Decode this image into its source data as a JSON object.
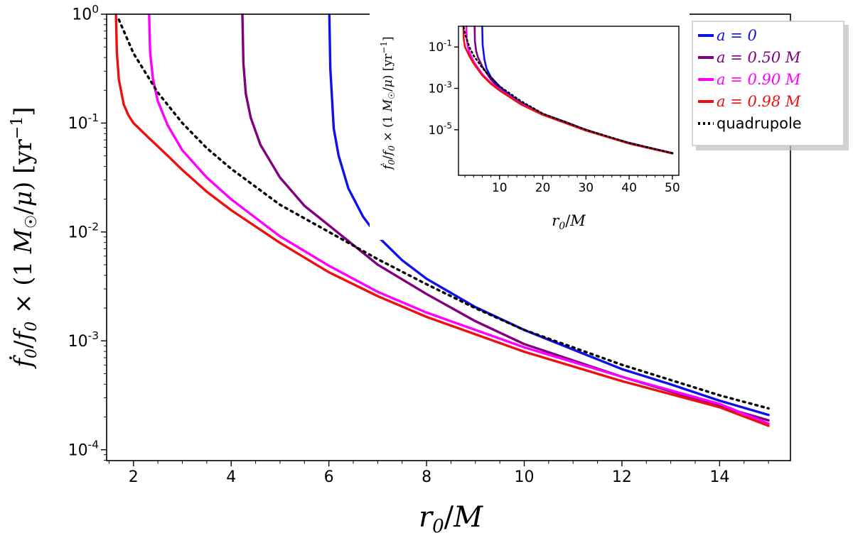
{
  "chart_data": [
    {
      "id": "main",
      "type": "line",
      "title": "",
      "xlabel": "r₀/M",
      "ylabel": "ḟ₀/f₀ × (1 M☉/μ) [yr⁻¹]",
      "xlim": [
        1.45,
        15.45
      ],
      "ylim_log10": [
        -4.1,
        0.0
      ],
      "yscale": "log",
      "x_ticks": [
        2,
        4,
        6,
        8,
        10,
        12,
        14
      ],
      "x_tick_labels": [
        "2",
        "4",
        "6",
        "8",
        "10",
        "12",
        "14"
      ],
      "y_ticks": [
        -4,
        -3,
        -2,
        -1,
        0
      ],
      "y_tick_labels": [
        {
          "base": "10",
          "exp": "-4"
        },
        {
          "base": "10",
          "exp": "-3"
        },
        {
          "base": "10",
          "exp": "-2"
        },
        {
          "base": "10",
          "exp": "-1"
        },
        {
          "base": "10",
          "exp": "0"
        }
      ],
      "series": [
        {
          "name": "a = 0",
          "color": "#1010e8",
          "style": "solid",
          "x": [
            6.01,
            6.03,
            6.1,
            6.2,
            6.4,
            6.7,
            7.0,
            7.5,
            8.0,
            9.0,
            10.0,
            11.0,
            12.0,
            13.0,
            14.0,
            15.0
          ],
          "y_log10": [
            0.0,
            -0.5,
            -1.05,
            -1.3,
            -1.6,
            -1.86,
            -2.04,
            -2.26,
            -2.43,
            -2.69,
            -2.9,
            -3.08,
            -3.26,
            -3.4,
            -3.55,
            -3.68
          ]
        },
        {
          "name": "a = 0.50 M",
          "color": "#800080",
          "style": "solid",
          "x": [
            4.23,
            4.25,
            4.3,
            4.4,
            4.6,
            5.0,
            5.5,
            6.0,
            7.0,
            8.0,
            9.0,
            10.0,
            12.0,
            14.0,
            15.0
          ],
          "y_log10": [
            0.0,
            -0.45,
            -0.73,
            -0.95,
            -1.2,
            -1.5,
            -1.76,
            -1.94,
            -2.3,
            -2.57,
            -2.82,
            -3.03,
            -3.33,
            -3.6,
            -3.73
          ]
        },
        {
          "name": "a = 0.90 M",
          "color": "#ff00ff",
          "style": "solid",
          "x": [
            2.32,
            2.34,
            2.4,
            2.5,
            2.7,
            3.0,
            3.5,
            4.0,
            5.0,
            6.0,
            7.0,
            8.0,
            10.0,
            12.0,
            14.0,
            15.0
          ],
          "y_log10": [
            0.0,
            -0.35,
            -0.6,
            -0.8,
            -1.02,
            -1.25,
            -1.5,
            -1.7,
            -2.04,
            -2.31,
            -2.55,
            -2.74,
            -3.06,
            -3.33,
            -3.58,
            -3.76
          ]
        },
        {
          "name": "a = 0.98 M",
          "color": "#ee1010",
          "style": "solid",
          "x": [
            1.64,
            1.66,
            1.7,
            1.8,
            1.9,
            2.0,
            2.3,
            2.7,
            3.0,
            3.5,
            4.0,
            5.0,
            6.0,
            7.0,
            8.0,
            10.0,
            12.0,
            14.0,
            15.0
          ],
          "y_log10": [
            0.0,
            -0.35,
            -0.6,
            -0.83,
            -0.93,
            -1.0,
            -1.13,
            -1.3,
            -1.43,
            -1.63,
            -1.8,
            -2.1,
            -2.37,
            -2.59,
            -2.78,
            -3.1,
            -3.37,
            -3.61,
            -3.78
          ]
        },
        {
          "name": "quadrupole",
          "color": "#000000",
          "style": "dotted",
          "x": [
            1.7,
            2.0,
            2.5,
            3.0,
            3.5,
            4.0,
            5.0,
            6.0,
            7.0,
            8.0,
            9.0,
            10.0,
            12.0,
            14.0,
            15.0
          ],
          "y_log10": [
            -0.05,
            -0.36,
            -0.72,
            -1.0,
            -1.23,
            -1.42,
            -1.75,
            -2.0,
            -2.25,
            -2.48,
            -2.7,
            -2.9,
            -3.22,
            -3.5,
            -3.62
          ]
        }
      ]
    },
    {
      "id": "inset",
      "type": "line",
      "title": "",
      "xlabel": "r₀/M",
      "ylabel": "ḟ₀/f₀ × (1 M☉/μ) [yr⁻¹]",
      "xlim": [
        0.5,
        51.5
      ],
      "ylim_log10": [
        -7.2,
        0.0
      ],
      "yscale": "log",
      "x_ticks": [
        10,
        20,
        30,
        40,
        50
      ],
      "x_tick_labels": [
        "10",
        "20",
        "30",
        "40",
        "50"
      ],
      "y_ticks": [
        -5,
        -3,
        -1
      ],
      "y_tick_labels": [
        {
          "base": "10",
          "exp": "-5"
        },
        {
          "base": "10",
          "exp": "-3"
        },
        {
          "base": "10",
          "exp": "-1"
        }
      ],
      "series": [
        {
          "name": "a = 0",
          "color": "#1010e8",
          "style": "solid",
          "x": [
            6.0,
            6.1,
            6.5,
            7.0,
            8.0,
            10.0,
            12.0,
            15.0,
            20.0,
            25.0,
            30.0,
            35.0,
            40.0,
            45.0,
            50.0
          ],
          "y_log10": [
            0.0,
            -0.9,
            -1.6,
            -2.05,
            -2.45,
            -2.9,
            -3.26,
            -3.68,
            -4.23,
            -4.6,
            -5.0,
            -5.33,
            -5.63,
            -5.88,
            -6.12
          ]
        },
        {
          "name": "a = 0.50 M",
          "color": "#800080",
          "style": "solid",
          "x": [
            4.23,
            4.3,
            4.6,
            5.0,
            6.0,
            8.0,
            10.0,
            15.0,
            20.0,
            30.0,
            40.0,
            50.0
          ],
          "y_log10": [
            0.0,
            -0.73,
            -1.2,
            -1.5,
            -1.94,
            -2.57,
            -3.03,
            -3.73,
            -4.25,
            -5.02,
            -5.65,
            -6.13
          ]
        },
        {
          "name": "a = 0.90 M",
          "color": "#ff00ff",
          "style": "solid",
          "x": [
            2.32,
            2.4,
            2.7,
            3.0,
            4.0,
            6.0,
            8.0,
            10.0,
            15.0,
            20.0,
            30.0,
            40.0,
            50.0
          ],
          "y_log10": [
            0.0,
            -0.6,
            -1.02,
            -1.25,
            -1.7,
            -2.31,
            -2.74,
            -3.06,
            -3.76,
            -4.27,
            -5.03,
            -5.66,
            -6.14
          ]
        },
        {
          "name": "a = 0.98 M",
          "color": "#ee1010",
          "style": "solid",
          "x": [
            1.64,
            1.7,
            2.0,
            3.0,
            4.0,
            6.0,
            8.0,
            10.0,
            15.0,
            20.0,
            30.0,
            40.0,
            50.0
          ],
          "y_log10": [
            0.0,
            -0.6,
            -1.0,
            -1.43,
            -1.8,
            -2.37,
            -2.78,
            -3.1,
            -3.78,
            -4.28,
            -5.04,
            -5.67,
            -6.15
          ]
        },
        {
          "name": "quadrupole",
          "color": "#000000",
          "style": "dotted",
          "x": [
            1.7,
            2.0,
            3.0,
            4.0,
            6.0,
            8.0,
            10.0,
            15.0,
            20.0,
            30.0,
            40.0,
            50.0
          ],
          "y_log10": [
            -0.05,
            -0.36,
            -1.0,
            -1.42,
            -2.0,
            -2.48,
            -2.9,
            -3.62,
            -4.22,
            -5.0,
            -5.64,
            -6.13
          ]
        }
      ]
    }
  ],
  "legend": {
    "placement": "top-right",
    "entries": [
      {
        "label": "a = 0",
        "color": "#1010e8",
        "style": "solid",
        "math": true
      },
      {
        "label": "a = 0.50 M",
        "color": "#800080",
        "style": "solid",
        "math": true
      },
      {
        "label": "a = 0.90 M",
        "color": "#ff00ff",
        "style": "solid",
        "math": true
      },
      {
        "label": "a = 0.98 M",
        "color": "#ee1010",
        "style": "solid",
        "math": true
      },
      {
        "label": "quadrupole",
        "color": "#000000",
        "style": "dotted",
        "math": false
      }
    ]
  }
}
